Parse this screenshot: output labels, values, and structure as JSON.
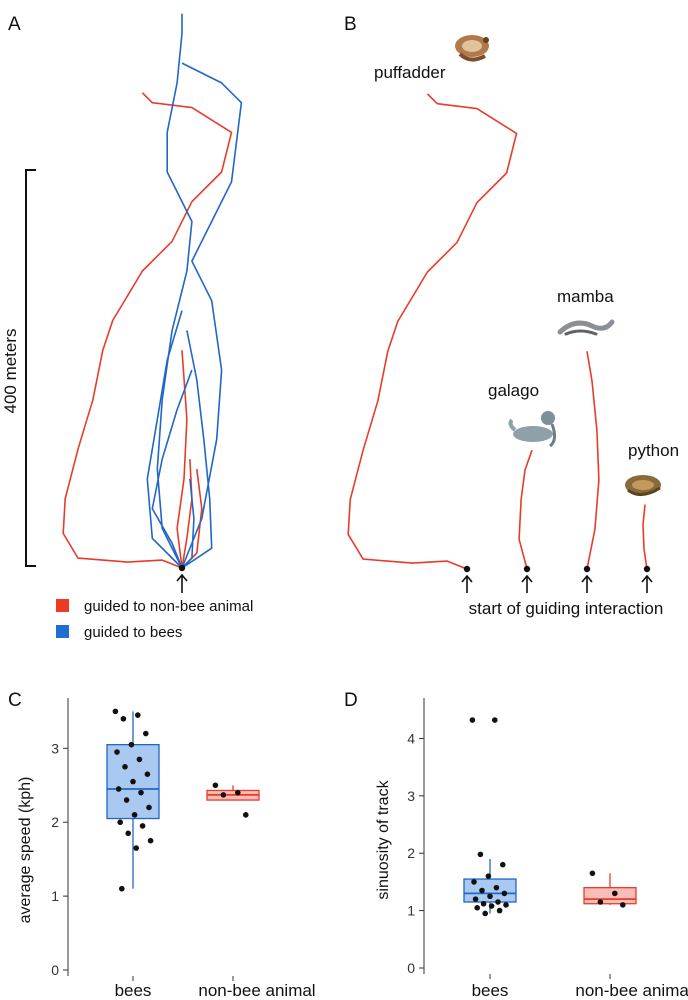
{
  "colors": {
    "bee_line": "#2266c8",
    "bee_fill": "#a9c9f0",
    "bee_legend": "#1f6fd1",
    "other_line": "#e83c2a",
    "other_fill": "#f7bdb6",
    "other_legend": "#ee3a22",
    "point": "#111111",
    "axis": "#333333"
  },
  "panels": {
    "A": {
      "letter": "A",
      "scale_label": "400 meters"
    },
    "B": {
      "letter": "B",
      "start_label": "start of guiding interaction",
      "animals": [
        {
          "name": "puffadder",
          "icon": "puffadder-snake-icon"
        },
        {
          "name": "mamba",
          "icon": "mamba-snake-icon"
        },
        {
          "name": "galago",
          "icon": "galago-icon"
        },
        {
          "name": "python",
          "icon": "python-snake-icon"
        }
      ]
    },
    "C": {
      "letter": "C"
    },
    "D": {
      "letter": "D"
    }
  },
  "legend": [
    {
      "label": "guided to non-bee animal",
      "color_key": "other_legend"
    },
    {
      "label": "guided to bees",
      "color_key": "bee_legend"
    }
  ],
  "chart_data": [
    {
      "type": "line",
      "id": "A",
      "units": "meters",
      "series": [
        {
          "group": "guided to non-bee animal",
          "points": [
            [
              0,
              0
            ],
            [
              -20,
              8
            ],
            [
              -55,
              6
            ],
            [
              -105,
              10
            ],
            [
              -120,
              35
            ],
            [
              -118,
              70
            ],
            [
              -105,
              120
            ],
            [
              -90,
              170
            ],
            [
              -80,
              220
            ],
            [
              -70,
              250
            ],
            [
              -40,
              300
            ],
            [
              -10,
              330
            ],
            [
              10,
              370
            ],
            [
              40,
              400
            ],
            [
              50,
              440
            ],
            [
              10,
              465
            ],
            [
              -30,
              470
            ],
            [
              -40,
              480
            ]
          ]
        },
        {
          "group": "guided to non-bee animal",
          "points": [
            [
              0,
              0
            ],
            [
              -5,
              40
            ],
            [
              2,
              90
            ],
            [
              5,
              150
            ],
            [
              0,
              220
            ]
          ]
        },
        {
          "group": "guided to non-bee animal",
          "points": [
            [
              0,
              0
            ],
            [
              5,
              30
            ],
            [
              10,
              70
            ],
            [
              8,
              110
            ]
          ]
        },
        {
          "group": "guided to non-bee animal",
          "points": [
            [
              0,
              0
            ],
            [
              15,
              15
            ],
            [
              20,
              60
            ],
            [
              15,
              100
            ]
          ]
        },
        {
          "group": "guided to bees",
          "points": [
            [
              0,
              0
            ],
            [
              -20,
              40
            ],
            [
              -25,
              100
            ],
            [
              -20,
              170
            ],
            [
              -10,
              240
            ],
            [
              5,
              300
            ],
            [
              10,
              350
            ],
            [
              -15,
              400
            ],
            [
              -15,
              440
            ],
            [
              -5,
              490
            ],
            [
              0,
              540
            ],
            [
              0,
              560
            ]
          ]
        },
        {
          "group": "guided to bees",
          "points": [
            [
              0,
              0
            ],
            [
              20,
              50
            ],
            [
              35,
              130
            ],
            [
              40,
              200
            ],
            [
              30,
              270
            ],
            [
              10,
              310
            ],
            [
              50,
              390
            ],
            [
              60,
              470
            ],
            [
              40,
              490
            ],
            [
              0,
              510
            ]
          ]
        },
        {
          "group": "guided to bees",
          "points": [
            [
              0,
              0
            ],
            [
              -30,
              30
            ],
            [
              -35,
              90
            ],
            [
              -25,
              150
            ],
            [
              -15,
              210
            ],
            [
              0,
              260
            ]
          ]
        },
        {
          "group": "guided to bees",
          "points": [
            [
              0,
              0
            ],
            [
              -10,
              25
            ],
            [
              -30,
              60
            ],
            [
              -20,
              110
            ],
            [
              -5,
              160
            ],
            [
              10,
              200
            ]
          ]
        },
        {
          "group": "guided to bees",
          "points": [
            [
              0,
              0
            ],
            [
              30,
              20
            ],
            [
              28,
              70
            ],
            [
              22,
              130
            ],
            [
              15,
              190
            ],
            [
              5,
              240
            ]
          ]
        },
        {
          "group": "guided to bees",
          "points": [
            [
              0,
              0
            ],
            [
              10,
              10
            ],
            [
              12,
              50
            ],
            [
              8,
              90
            ]
          ]
        }
      ]
    },
    {
      "type": "line",
      "id": "B",
      "units": "meters",
      "series": [
        {
          "name": "puffadder",
          "points": [
            [
              0,
              0
            ],
            [
              -20,
              8
            ],
            [
              -55,
              6
            ],
            [
              -105,
              10
            ],
            [
              -120,
              35
            ],
            [
              -118,
              70
            ],
            [
              -105,
              120
            ],
            [
              -90,
              170
            ],
            [
              -80,
              220
            ],
            [
              -70,
              250
            ],
            [
              -40,
              300
            ],
            [
              -10,
              330
            ],
            [
              10,
              370
            ],
            [
              40,
              400
            ],
            [
              50,
              440
            ],
            [
              10,
              465
            ],
            [
              -30,
              470
            ],
            [
              -40,
              480
            ]
          ]
        },
        {
          "name": "mamba",
          "points": [
            [
              0,
              0
            ],
            [
              8,
              40
            ],
            [
              12,
              90
            ],
            [
              10,
              140
            ],
            [
              5,
              190
            ],
            [
              0,
              220
            ]
          ]
        },
        {
          "name": "galago",
          "points": [
            [
              0,
              0
            ],
            [
              -8,
              30
            ],
            [
              -6,
              70
            ],
            [
              -2,
              100
            ],
            [
              5,
              120
            ]
          ]
        },
        {
          "name": "python",
          "points": [
            [
              0,
              0
            ],
            [
              -3,
              20
            ],
            [
              -4,
              45
            ],
            [
              -2,
              65
            ]
          ]
        }
      ]
    },
    {
      "type": "box",
      "id": "C",
      "ylabel": "average speed (kph)",
      "yticks": [
        0,
        1,
        2,
        3
      ],
      "ylim": [
        0,
        3.6
      ],
      "categories": [
        "bees",
        "non-bee animal"
      ],
      "boxes": [
        {
          "category": "bees",
          "q1": 2.05,
          "median": 2.45,
          "q3": 3.05,
          "whisker_low": 1.1,
          "whisker_high": 3.5,
          "points": [
            3.5,
            3.45,
            3.4,
            3.2,
            3.05,
            2.95,
            2.85,
            2.75,
            2.65,
            2.55,
            2.45,
            2.4,
            2.3,
            2.2,
            2.1,
            2.0,
            1.95,
            1.85,
            1.75,
            1.65,
            1.1
          ]
        },
        {
          "category": "non-bee animal",
          "q1": 2.3,
          "median": 2.37,
          "q3": 2.43,
          "whisker_low": 2.3,
          "whisker_high": 2.5,
          "points": [
            2.5,
            2.4,
            2.37,
            2.1
          ]
        }
      ]
    },
    {
      "type": "box",
      "id": "D",
      "ylabel": "sinuosity of track",
      "yticks": [
        0,
        1,
        2,
        3,
        4
      ],
      "ylim": [
        0,
        4.6
      ],
      "categories": [
        "bees",
        "non-bee animal"
      ],
      "boxes": [
        {
          "category": "bees",
          "q1": 1.15,
          "median": 1.3,
          "q3": 1.55,
          "whisker_low": 0.95,
          "whisker_high": 1.9,
          "points": [
            4.32,
            4.32,
            1.98,
            1.8,
            1.6,
            1.5,
            1.4,
            1.35,
            1.3,
            1.25,
            1.2,
            1.15,
            1.12,
            1.1,
            1.08,
            1.05,
            1.0,
            0.95
          ]
        },
        {
          "category": "non-bee animal",
          "q1": 1.12,
          "median": 1.2,
          "q3": 1.4,
          "whisker_low": 1.1,
          "whisker_high": 1.65,
          "points": [
            1.65,
            1.3,
            1.15,
            1.1
          ]
        }
      ]
    }
  ]
}
